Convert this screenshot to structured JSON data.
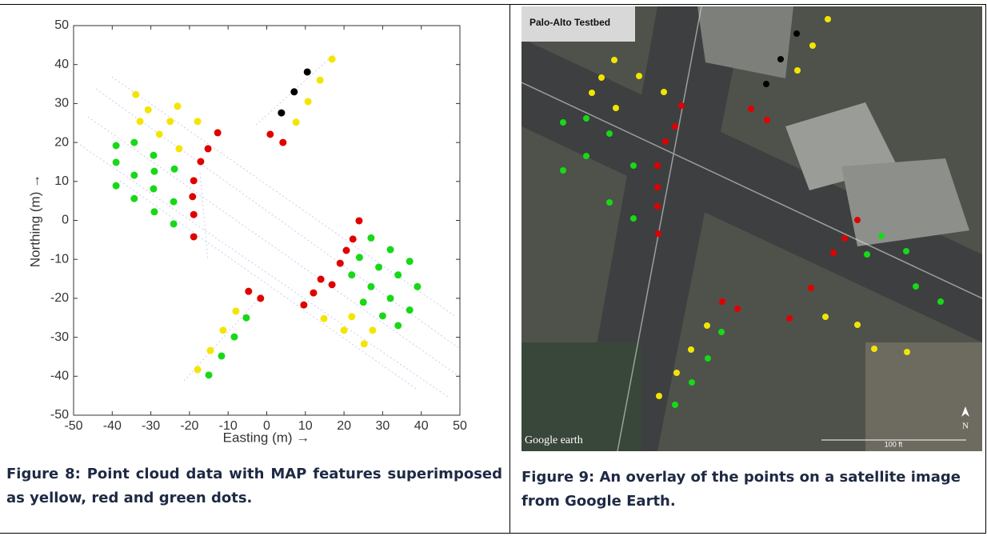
{
  "chart_data": {
    "type": "scatter",
    "xlabel": "Easting (m) →",
    "ylabel": "Northing (m) →",
    "xlim": [
      -50,
      50
    ],
    "ylim": [
      -50,
      50
    ],
    "xticks": [
      -50,
      -40,
      -30,
      -20,
      -10,
      0,
      10,
      20,
      30,
      40,
      50
    ],
    "yticks": [
      -50,
      -40,
      -30,
      -20,
      -10,
      0,
      10,
      20,
      30,
      40,
      50
    ],
    "series": [
      {
        "color": "#f2e600",
        "x": [
          -33.9,
          -30.7,
          -23.1,
          -32.8,
          -27.8,
          -17.9,
          -22.7,
          -25,
          16.9,
          13.8,
          10.7,
          7.6,
          14.8,
          20,
          25.2,
          27.4,
          22,
          -8,
          -11.3,
          -14.6,
          -17.9
        ],
        "y": [
          32.3,
          28.4,
          29.3,
          25.4,
          22.1,
          25.4,
          18.4,
          25.4,
          41.4,
          36,
          30.5,
          25.2,
          -25.2,
          -28.2,
          -31.7,
          -28.2,
          -24.7,
          -23.3,
          -28.2,
          -33.4,
          -38.3
        ]
      },
      {
        "color": "#000000",
        "x": [
          10.5,
          7.1,
          3.8
        ],
        "y": [
          38.1,
          33,
          27.6
        ]
      },
      {
        "color": "#e00000",
        "x": [
          -12.7,
          -15.2,
          -17.1,
          -18.9,
          -19.2,
          -18.9,
          -18.9,
          0.9,
          4.2,
          23.9,
          22.3,
          20.6,
          19,
          16.9,
          14,
          12.1,
          9.6,
          -4.7,
          -1.6
        ],
        "y": [
          22.5,
          18.4,
          15.1,
          10.2,
          6.1,
          1.5,
          -4.2,
          22.1,
          20,
          -0.1,
          -4.8,
          -7.7,
          -11,
          -16.5,
          -15.1,
          -18.6,
          -21.7,
          -18.2,
          -20
        ]
      },
      {
        "color": "#18d818",
        "x": [
          -39,
          -34.3,
          -29.3,
          -23.9,
          -39,
          -34.3,
          -29.1,
          -39,
          -34.3,
          -29.3,
          -24.1,
          -29.1,
          -24.1,
          27,
          32,
          37,
          24,
          29,
          34,
          39,
          22,
          27,
          32,
          37,
          25,
          30,
          34,
          -5.3,
          -8.4,
          -11.7,
          -15
        ],
        "y": [
          19.2,
          20,
          16.7,
          13.2,
          14.9,
          11.6,
          12.6,
          8.9,
          5.6,
          8.1,
          4.8,
          2.2,
          -0.9,
          -4.5,
          -7.5,
          -10.5,
          -9.5,
          -12,
          -14,
          -17,
          -14,
          -17,
          -20,
          -23,
          -21,
          -24.5,
          -27,
          -25,
          -29.9,
          -34.8,
          -39.7
        ]
      }
    ]
  },
  "captions": [
    "Figure 8: Point cloud data with MAP features superimposed as yellow, red and green dots.",
    "Figure 9: An overlay of the points on a satellite image from Google Earth."
  ],
  "satellite": {
    "title": "Palo-Alto Testbed",
    "watermark": "Google earth",
    "scale": "100 ft",
    "north": "N"
  }
}
